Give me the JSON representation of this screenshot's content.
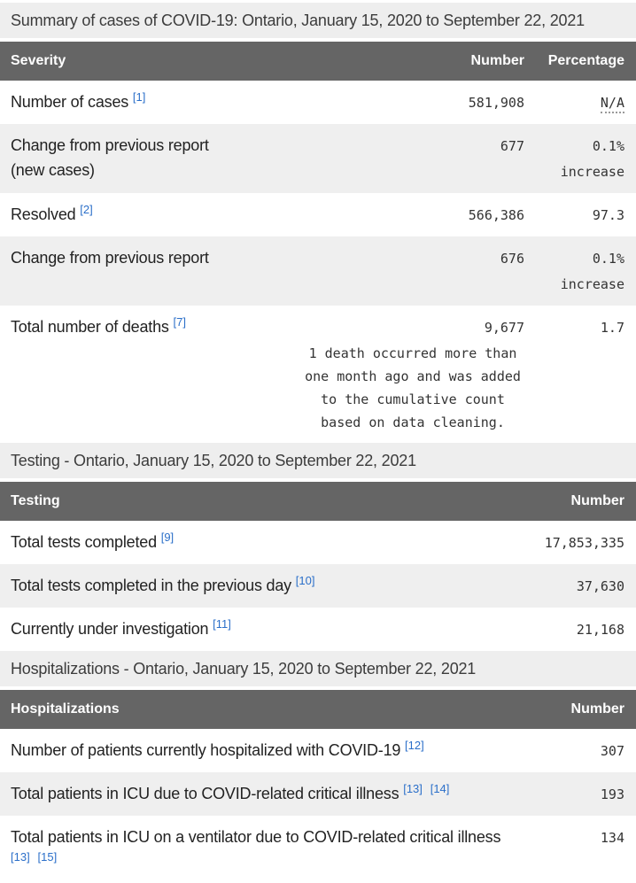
{
  "colors": {
    "header_bg": "#656565",
    "header_text": "#ffffff",
    "caption_bg": "#eeeeee",
    "row_alt_bg": "#efefef",
    "row_bg": "#ffffff",
    "label_text": "#222222",
    "value_text": "#333333",
    "footnote_link": "#2b6fc9"
  },
  "sections": [
    {
      "caption": "Summary of cases of COVID-19: Ontario, January 15, 2020 to September 22, 2021",
      "col_label": "Severity",
      "col_number": "Number",
      "col_percentage": "Percentage",
      "rows": [
        {
          "label": "Number of cases",
          "footnotes": [
            "[1]"
          ],
          "number": "581,908",
          "percentage": "N/A",
          "percentage_abbr": true
        },
        {
          "label_lines": [
            "Change from previous report",
            "(new cases)"
          ],
          "number": "677",
          "percentage": "0.1% increase"
        },
        {
          "label": "Resolved",
          "footnotes": [
            "[2]"
          ],
          "number": "566,386",
          "percentage": "97.3"
        },
        {
          "label": "Change from previous report",
          "number": "676",
          "percentage": "0.1% increase"
        },
        {
          "label": "Total number of deaths",
          "footnotes": [
            "[7]"
          ],
          "number": "9,677",
          "percentage": "1.7",
          "note": "1 death occurred more than one month ago and was added to the cumulative count based on data cleaning."
        }
      ]
    },
    {
      "caption": "Testing - Ontario, January 15, 2020 to September 22, 2021",
      "col_label": "Testing",
      "col_number": "Number",
      "rows": [
        {
          "label": "Total tests completed",
          "footnotes": [
            "[9]"
          ],
          "number": "17,853,335"
        },
        {
          "label": "Total tests completed in the previous day",
          "footnotes": [
            "[10]"
          ],
          "number": "37,630"
        },
        {
          "label": "Currently under investigation",
          "footnotes": [
            "[11]"
          ],
          "number": "21,168"
        }
      ]
    },
    {
      "caption": "Hospitalizations - Ontario, January 15, 2020 to September 22, 2021",
      "col_label": "Hospitalizations",
      "col_number": "Number",
      "rows": [
        {
          "label": "Number of patients currently hospitalized with COVID-19",
          "footnotes": [
            "[12]"
          ],
          "number": "307"
        },
        {
          "label": "Total patients in ICU due to COVID-related critical illness",
          "footnotes": [
            "[13]",
            "[14]"
          ],
          "number": "193"
        },
        {
          "label": "Total patients in ICU on a ventilator due to COVID-related critical illness",
          "footnotes": [
            "[13]",
            "[15]"
          ],
          "number": "134"
        }
      ]
    }
  ]
}
